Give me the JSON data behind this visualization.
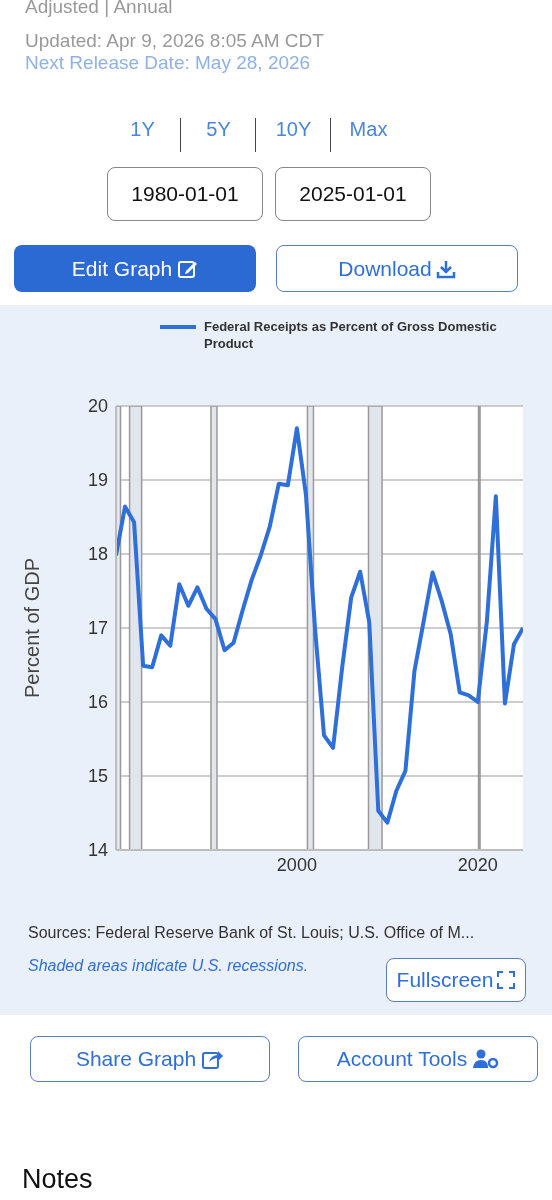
{
  "chart_data": {
    "type": "line",
    "x": [
      "1980-01-01",
      "1981-01-01",
      "1982-01-01",
      "1983-01-01",
      "1984-01-01",
      "1985-01-01",
      "1986-01-01",
      "1987-01-01",
      "1988-01-01",
      "1989-01-01",
      "1990-01-01",
      "1991-01-01",
      "1992-01-01",
      "1993-01-01",
      "1994-01-01",
      "1995-01-01",
      "1996-01-01",
      "1997-01-01",
      "1998-01-01",
      "1999-01-01",
      "2000-01-01",
      "2001-01-01",
      "2002-01-01",
      "2003-01-01",
      "2004-01-01",
      "2005-01-01",
      "2006-01-01",
      "2007-01-01",
      "2008-01-01",
      "2009-01-01",
      "2010-01-01",
      "2011-01-01",
      "2012-01-01",
      "2013-01-01",
      "2014-01-01",
      "2015-01-01",
      "2016-01-01",
      "2017-01-01",
      "2018-01-01",
      "2019-01-01",
      "2020-01-01",
      "2021-01-01",
      "2022-01-01",
      "2023-01-01",
      "2024-01-01",
      "2025-01-01"
    ],
    "series": [
      {
        "name": "Federal Receipts as Percent of Gross Domestic Product",
        "color": "#2f6fd8",
        "values": [
          17.98,
          18.64,
          18.43,
          16.49,
          16.47,
          16.9,
          16.76,
          17.59,
          17.3,
          17.55,
          17.26,
          17.12,
          16.7,
          16.8,
          17.24,
          17.65,
          17.98,
          18.37,
          18.95,
          18.93,
          19.7,
          18.8,
          17.0,
          15.55,
          15.38,
          16.46,
          17.41,
          17.76,
          17.08,
          14.53,
          14.37,
          14.8,
          15.07,
          16.42,
          17.08,
          17.75,
          17.37,
          16.92,
          16.13,
          16.09,
          16.0,
          17.08,
          18.78,
          15.98,
          16.78,
          17.0
        ]
      }
    ],
    "ylabel": "Percent of GDP",
    "xlim": [
      "1980-01-01",
      "2025-01-01"
    ],
    "xticks": [
      {
        "value": "2000-01-01",
        "label": "2000"
      },
      {
        "value": "2020-01-01",
        "label": "2020"
      }
    ],
    "ylim": [
      14,
      20
    ],
    "yticks": [
      14,
      15,
      16,
      17,
      18,
      19,
      20
    ],
    "grid": "y",
    "legend": "top",
    "marker": "none",
    "line_style": "solid",
    "bands": [
      {
        "axis": "x",
        "from": "1980-01-01",
        "to": "1980-07-01",
        "color": "#e1e5ed"
      },
      {
        "axis": "x",
        "from": "1981-07-01",
        "to": "1982-11-01",
        "color": "#e1e5ed"
      },
      {
        "axis": "x",
        "from": "1990-07-01",
        "to": "1991-03-01",
        "color": "#e1e5ed"
      },
      {
        "axis": "x",
        "from": "2001-03-01",
        "to": "2001-11-01",
        "color": "#e1e5ed"
      },
      {
        "axis": "x",
        "from": "2007-12-01",
        "to": "2009-06-01",
        "color": "#e1e5ed"
      },
      {
        "axis": "x",
        "from": "2020-02-01",
        "to": "2020-04-01",
        "color": "#e1e5ed"
      }
    ],
    "annotations": [
      "Adjusted | Annual",
      "Updated: Apr 9, 2026 8:05 AM CDT",
      "Next Release Date: May 28, 2026",
      "1Y",
      "5Y",
      "10Y",
      "Max",
      "1980-01-01",
      "2025-01-01",
      "Edit Graph",
      "Download",
      "Sources: Federal Reserve Bank of St. Louis; U.S. Office of M...",
      "Shaded areas indicate U.S. recessions.",
      "Fullscreen",
      "Share Graph",
      "Account Tools",
      "Notes"
    ]
  }
}
